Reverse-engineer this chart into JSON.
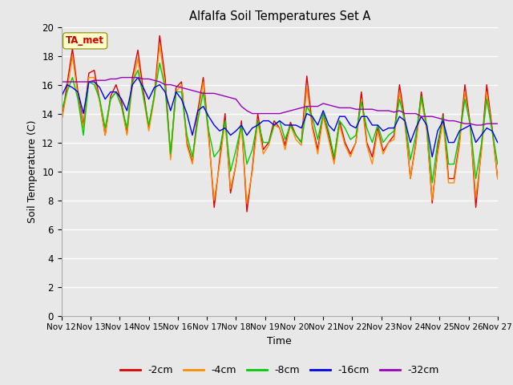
{
  "title": "Alfalfa Soil Temperatures Set A",
  "xlabel": "Time",
  "ylabel": "Soil Temperature (C)",
  "ylim": [
    0,
    20
  ],
  "yticks": [
    0,
    2,
    4,
    6,
    8,
    10,
    12,
    14,
    16,
    18,
    20
  ],
  "x_labels": [
    "Nov 12",
    "Nov 13",
    "Nov 14",
    "Nov 15",
    "Nov 16",
    "Nov 17",
    "Nov 18",
    "Nov 19",
    "Nov 20",
    "Nov 21",
    "Nov 22",
    "Nov 23",
    "Nov 24",
    "Nov 25",
    "Nov 26",
    "Nov 27"
  ],
  "annotation_label": "TA_met",
  "fig_bg_color": "#e8e8e8",
  "plot_bg_color": "#e8e8e8",
  "grid_color": "#ffffff",
  "colors": {
    "-2cm": "#dd0000",
    "-4cm": "#ff8c00",
    "-8cm": "#00cc00",
    "-16cm": "#0000ee",
    "-32cm": "#9900bb"
  },
  "series": {
    "-2cm": [
      13.5,
      16.0,
      18.5,
      15.5,
      13.2,
      16.8,
      17.0,
      14.9,
      12.5,
      15.2,
      16.0,
      14.8,
      12.6,
      16.5,
      18.4,
      15.6,
      13.0,
      15.2,
      19.4,
      16.5,
      11.0,
      15.8,
      16.2,
      12.0,
      10.6,
      14.2,
      16.5,
      12.5,
      7.5,
      10.8,
      14.0,
      8.5,
      10.5,
      13.5,
      7.2,
      10.2,
      14.0,
      11.5,
      12.0,
      13.5,
      13.0,
      11.8,
      13.4,
      12.5,
      12.0,
      16.6,
      13.2,
      11.5,
      14.0,
      12.5,
      10.8,
      13.5,
      12.0,
      11.2,
      12.0,
      15.5,
      12.0,
      11.0,
      13.0,
      11.4,
      12.0,
      12.5,
      16.0,
      13.5,
      9.5,
      12.0,
      15.5,
      13.0,
      7.8,
      11.5,
      14.0,
      9.5,
      9.5,
      12.0,
      16.0,
      13.2,
      7.5,
      11.5,
      16.0,
      13.0,
      9.5
    ],
    "-4cm": [
      13.5,
      15.5,
      18.0,
      15.2,
      13.0,
      16.5,
      16.5,
      14.8,
      12.5,
      15.0,
      15.5,
      14.5,
      12.5,
      16.0,
      17.8,
      15.2,
      12.8,
      15.0,
      18.8,
      16.0,
      10.8,
      15.5,
      16.0,
      11.8,
      10.5,
      13.8,
      16.2,
      12.2,
      8.0,
      10.5,
      13.5,
      8.8,
      10.5,
      13.2,
      7.8,
      10.0,
      13.5,
      11.2,
      11.8,
      13.2,
      13.0,
      11.5,
      13.2,
      12.2,
      11.8,
      15.8,
      13.0,
      11.2,
      13.8,
      12.2,
      10.5,
      13.2,
      11.8,
      11.0,
      12.0,
      15.0,
      11.8,
      10.5,
      12.8,
      11.2,
      12.0,
      12.2,
      15.5,
      13.2,
      9.5,
      11.8,
      15.0,
      12.8,
      8.0,
      11.2,
      13.5,
      9.2,
      9.2,
      11.8,
      15.5,
      13.0,
      8.2,
      11.2,
      15.5,
      12.8,
      9.5
    ],
    "-8cm": [
      14.2,
      15.5,
      16.5,
      15.0,
      12.5,
      16.2,
      16.0,
      15.0,
      13.0,
      15.0,
      15.5,
      14.5,
      13.0,
      16.2,
      17.0,
      15.2,
      13.2,
      15.2,
      17.5,
      15.8,
      11.2,
      15.5,
      15.5,
      12.5,
      11.0,
      13.5,
      15.5,
      12.8,
      11.0,
      11.5,
      13.5,
      10.0,
      11.5,
      13.2,
      10.5,
      11.5,
      13.5,
      12.0,
      12.0,
      13.2,
      13.5,
      12.2,
      13.2,
      12.5,
      12.0,
      14.5,
      13.8,
      12.2,
      14.0,
      12.8,
      11.0,
      13.5,
      13.0,
      12.2,
      12.5,
      14.8,
      13.0,
      12.0,
      13.2,
      12.0,
      12.5,
      12.8,
      15.0,
      13.5,
      10.8,
      12.5,
      15.2,
      13.2,
      9.2,
      12.0,
      13.8,
      10.5,
      10.5,
      12.5,
      15.0,
      13.2,
      9.5,
      11.8,
      15.0,
      12.8,
      10.5
    ],
    "-16cm": [
      15.2,
      16.0,
      15.8,
      15.5,
      14.0,
      16.2,
      16.2,
      15.8,
      15.0,
      15.5,
      15.5,
      15.0,
      14.2,
      16.0,
      16.5,
      15.8,
      15.0,
      15.8,
      16.0,
      15.5,
      14.2,
      15.5,
      15.0,
      14.0,
      12.5,
      14.2,
      14.5,
      13.8,
      13.2,
      12.8,
      13.0,
      12.5,
      12.8,
      13.2,
      12.5,
      13.0,
      13.2,
      13.5,
      13.5,
      13.2,
      13.5,
      13.2,
      13.2,
      13.2,
      13.0,
      14.0,
      13.8,
      13.2,
      14.2,
      13.2,
      12.8,
      13.8,
      13.8,
      13.2,
      13.0,
      13.8,
      13.8,
      13.2,
      13.2,
      12.8,
      13.0,
      13.0,
      13.8,
      13.5,
      12.0,
      13.0,
      13.8,
      13.2,
      11.0,
      12.8,
      13.5,
      12.0,
      12.0,
      12.8,
      13.0,
      13.2,
      12.0,
      12.5,
      13.0,
      12.8,
      12.0
    ],
    "-32cm": [
      16.2,
      16.2,
      16.2,
      16.2,
      16.2,
      16.2,
      16.3,
      16.3,
      16.3,
      16.4,
      16.4,
      16.5,
      16.5,
      16.5,
      16.5,
      16.4,
      16.4,
      16.3,
      16.2,
      16.0,
      16.0,
      15.9,
      15.8,
      15.7,
      15.6,
      15.5,
      15.4,
      15.4,
      15.4,
      15.3,
      15.2,
      15.1,
      15.0,
      14.5,
      14.2,
      14.0,
      14.0,
      14.0,
      14.0,
      14.0,
      14.0,
      14.1,
      14.2,
      14.3,
      14.4,
      14.5,
      14.5,
      14.5,
      14.7,
      14.6,
      14.5,
      14.4,
      14.4,
      14.4,
      14.3,
      14.3,
      14.3,
      14.3,
      14.2,
      14.2,
      14.2,
      14.1,
      14.2,
      14.0,
      14.0,
      14.0,
      13.8,
      13.8,
      13.8,
      13.7,
      13.6,
      13.5,
      13.5,
      13.4,
      13.3,
      13.3,
      13.2,
      13.2,
      13.3,
      13.3,
      13.3
    ]
  }
}
